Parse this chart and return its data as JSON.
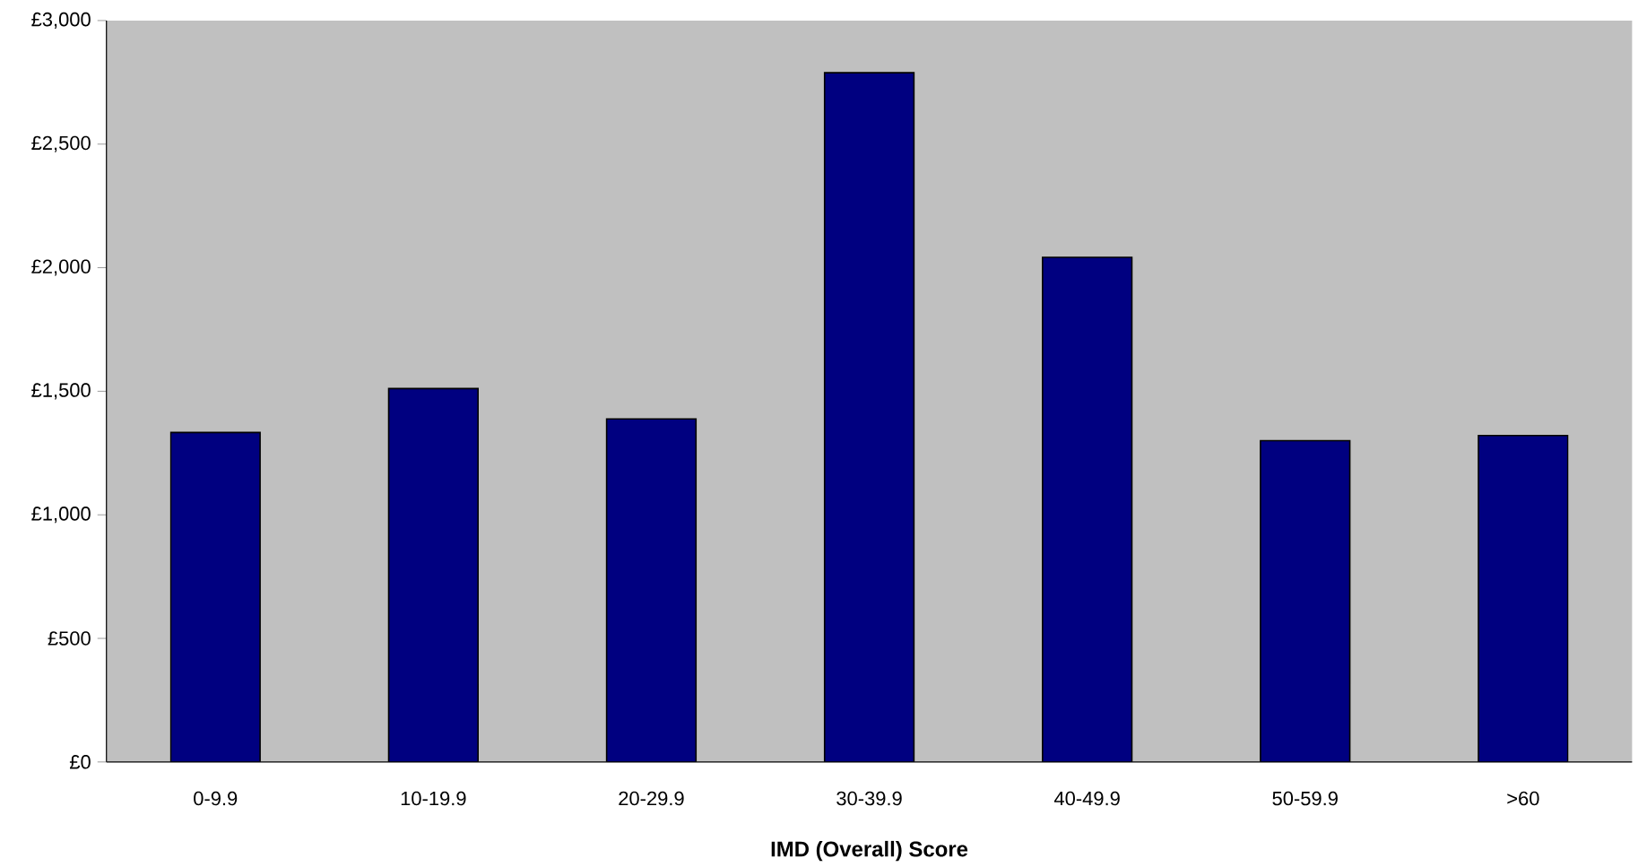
{
  "chart_data": {
    "type": "bar",
    "xlabel": "IMD (Overall) Score",
    "categories": [
      "0-9.9",
      "10-19.9",
      "20-29.9",
      "30-39.9",
      "40-49.9",
      "50-59.9",
      ">60"
    ],
    "values": [
      1333,
      1511,
      1388,
      2789,
      2042,
      1300,
      1321
    ],
    "color": "#000080",
    "ylim": [
      0,
      3000
    ],
    "yticks": [
      {
        "value": 0,
        "label": "£0"
      },
      {
        "value": 500,
        "label": "£500"
      },
      {
        "value": 1000,
        "label": "£1,000"
      },
      {
        "value": 1500,
        "label": "£1,500"
      },
      {
        "value": 2000,
        "label": "£2,000"
      },
      {
        "value": 2500,
        "label": "£2,500"
      },
      {
        "value": 3000,
        "label": "£3,000"
      }
    ],
    "grid": false
  }
}
